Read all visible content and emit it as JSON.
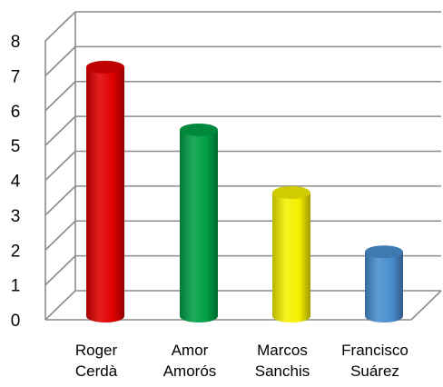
{
  "chart_data": {
    "type": "bar",
    "style": "3d-cylinder",
    "title": "",
    "xlabel": "",
    "ylabel": "",
    "categories": [
      [
        "Roger",
        "Cerdà"
      ],
      [
        "Amor",
        "Amorós"
      ],
      [
        "Marcos",
        "Sanchis"
      ],
      [
        "Francisco",
        "Suárez"
      ]
    ],
    "values": [
      7.3,
      5.5,
      3.7,
      2.0
    ],
    "colors": [
      "#e00000",
      "#00a046",
      "#f5f000",
      "#4a8ed0"
    ],
    "ylim": [
      0,
      8
    ],
    "yticks": [
      "0",
      "1",
      "2",
      "3",
      "4",
      "5",
      "6",
      "7",
      "8"
    ],
    "grid": true,
    "legend": "none"
  }
}
